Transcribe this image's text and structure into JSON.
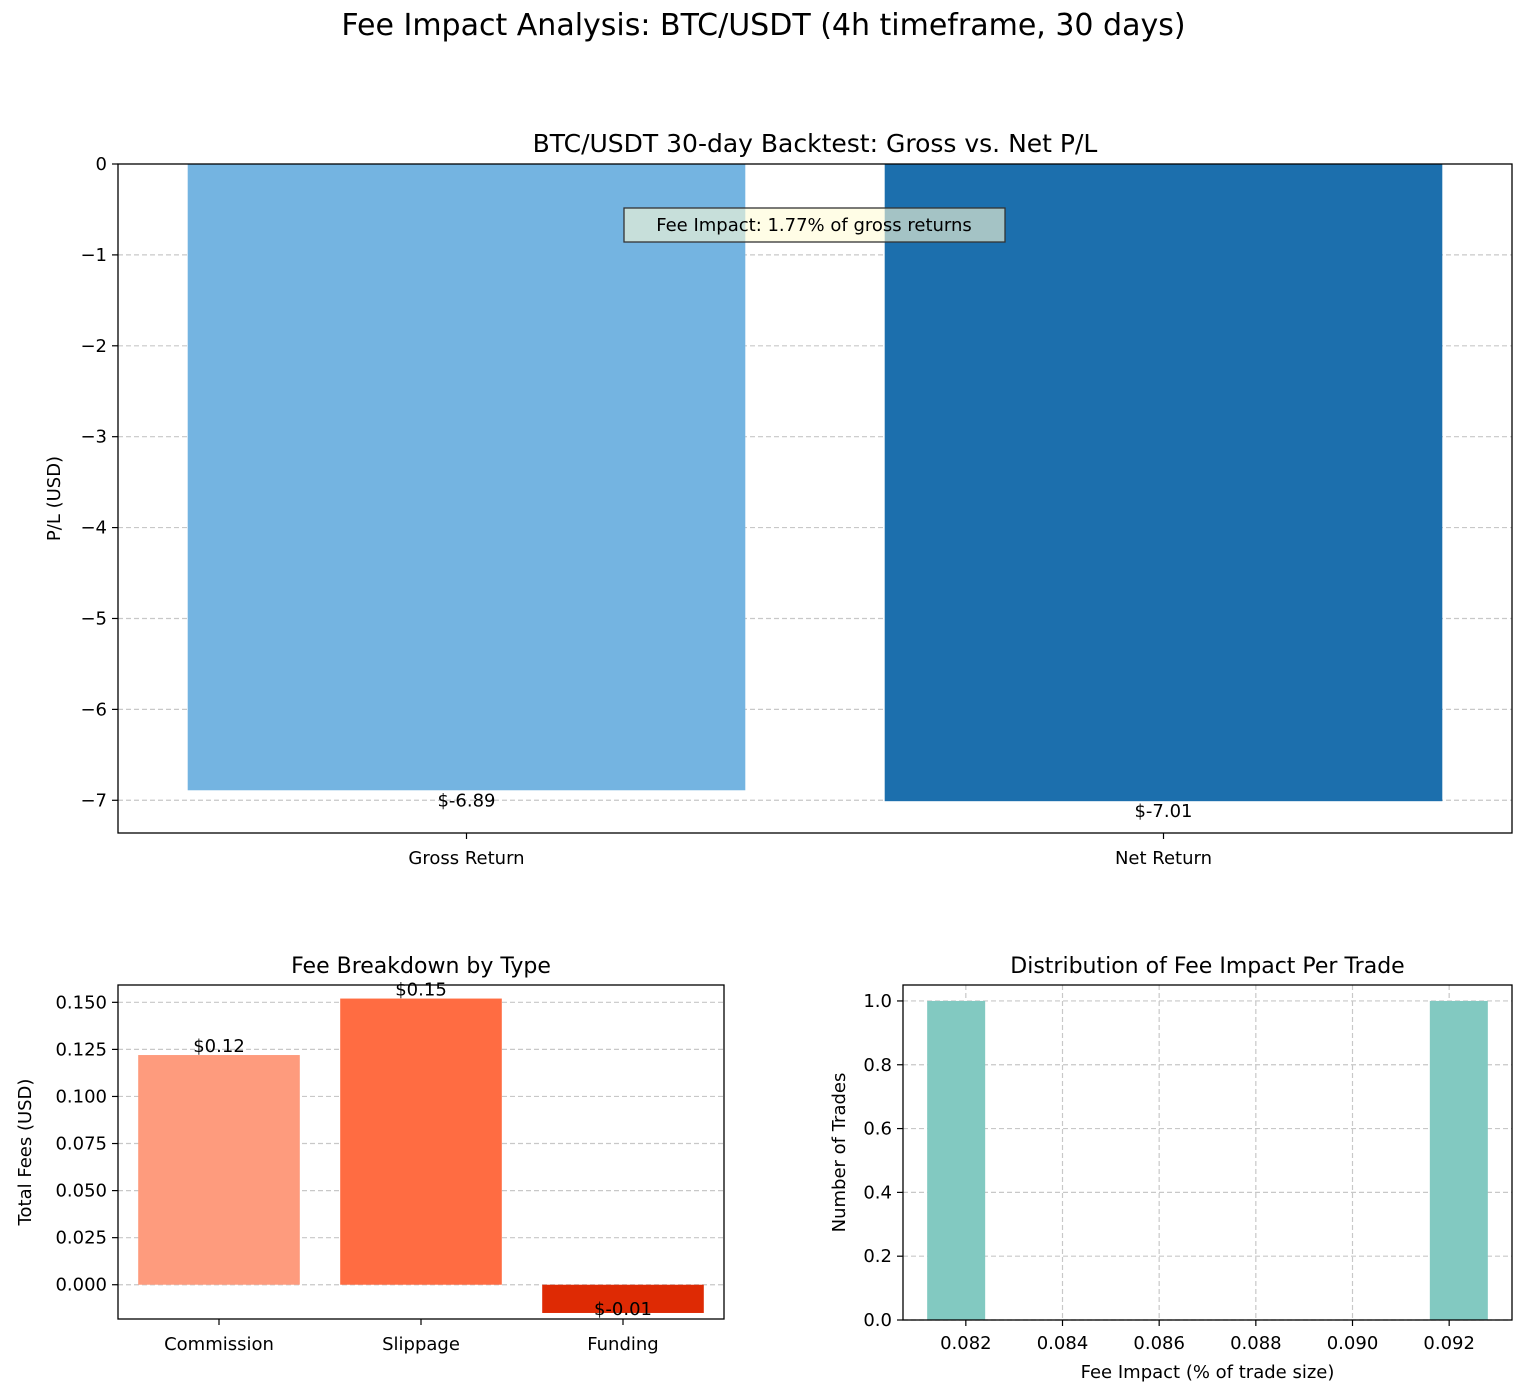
{
  "figure_title": "Fee Impact Analysis: BTC/USDT (4h timeframe, 30 days)",
  "chart_data": [
    {
      "type": "bar",
      "title": "BTC/USDT 30-day Backtest: Gross vs. Net P/L",
      "xlabel": "",
      "ylabel": "P/L (USD)",
      "categories": [
        "Gross Return",
        "Net Return"
      ],
      "values": [
        -6.89,
        -7.01
      ],
      "data_labels": [
        "$-6.89",
        "$-7.01"
      ],
      "colors": [
        "#74b4e1",
        "#1c6fad"
      ],
      "ylim": [
        -7.36,
        0
      ],
      "yticks": [
        0,
        -1,
        -2,
        -3,
        -4,
        -5,
        -6,
        -7
      ],
      "ytick_labels": [
        "0",
        "−1",
        "−2",
        "−3",
        "−4",
        "−5",
        "−6",
        "−7"
      ],
      "grid": "y",
      "annotation": "Fee Impact: 1.77% of gross returns"
    },
    {
      "type": "bar",
      "title": "Fee Breakdown by Type",
      "xlabel": "",
      "ylabel": "Total Fees (USD)",
      "categories": [
        "Commission",
        "Slippage",
        "Funding"
      ],
      "values": [
        0.122,
        0.152,
        -0.015
      ],
      "data_labels": [
        "$0.12",
        "$0.15",
        "$-0.01"
      ],
      "colors": [
        "#fe9b7d",
        "#ff6c42",
        "#de2a04"
      ],
      "ylim": [
        -0.0182,
        0.1592
      ],
      "yticks": [
        0,
        0.025,
        0.05,
        0.075,
        0.1,
        0.125,
        0.15
      ],
      "ytick_labels": [
        "0.000",
        "0.025",
        "0.050",
        "0.075",
        "0.100",
        "0.125",
        "0.150"
      ],
      "grid": "y"
    },
    {
      "type": "histogram",
      "title": "Distribution of Fee Impact Per Trade",
      "xlabel": "Fee Impact (% of trade size)",
      "ylabel": "Number of Trades",
      "bins": [
        {
          "x0": 0.0812,
          "x1": 0.0824,
          "count": 1
        },
        {
          "x0": 0.0916,
          "x1": 0.0928,
          "count": 1
        }
      ],
      "color": "#82c9c1",
      "xlim": [
        0.0807,
        0.0933
      ],
      "ylim": [
        0,
        1.05
      ],
      "xticks": [
        0.082,
        0.084,
        0.086,
        0.088,
        0.09,
        0.092
      ],
      "xtick_labels": [
        "0.082",
        "0.084",
        "0.086",
        "0.088",
        "0.090",
        "0.092"
      ],
      "yticks": [
        0,
        0.2,
        0.4,
        0.6,
        0.8,
        1.0
      ],
      "ytick_labels": [
        "0.0",
        "0.2",
        "0.4",
        "0.6",
        "0.8",
        "1.0"
      ],
      "grid": "both"
    }
  ]
}
